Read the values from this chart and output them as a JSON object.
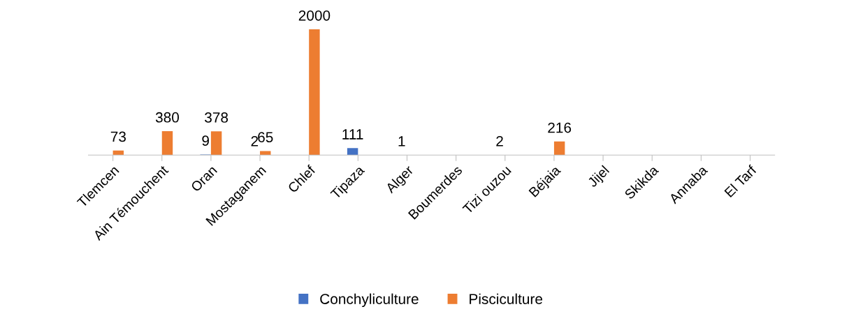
{
  "chart_data": {
    "type": "bar",
    "categories": [
      "Tlemcen",
      "Ain Témouchent",
      "Oran",
      "Mostaganem",
      "Chlef",
      "Tipaza",
      "Alger",
      "Boumerdes",
      "Tizi ouzou",
      "Béjaia",
      "Jijel",
      "Skikda",
      "Annaba",
      "El Tarf"
    ],
    "series": [
      {
        "name": "Conchyliculture",
        "color": "#4472c4",
        "values": [
          null,
          null,
          9,
          2,
          null,
          111,
          1,
          null,
          2,
          null,
          null,
          null,
          null,
          null
        ]
      },
      {
        "name": "Pisciculture",
        "color": "#ed7d31",
        "values": [
          73,
          380,
          378,
          65,
          2000,
          null,
          null,
          null,
          null,
          216,
          null,
          null,
          null,
          null
        ]
      }
    ],
    "data_labels": true,
    "legend": "bottom",
    "grid": false
  }
}
